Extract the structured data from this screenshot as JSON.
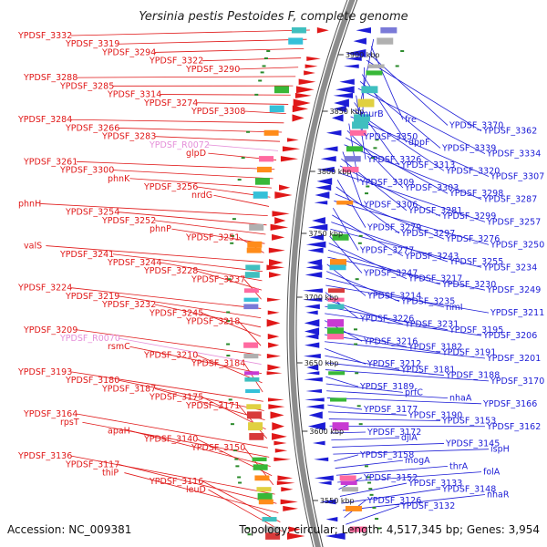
{
  "title": "Yersinia pestis Pestoides F, complete genome",
  "footer": {
    "accession": "Accession: NC_009381",
    "topology": "Topology: circular; Length: 4,517,345 bp; Genes: 3,954"
  },
  "colors": {
    "forward": "#e01818",
    "reverse": "#1c1cd6",
    "rna": "#e58fd9",
    "backbone": "#8c8c8c",
    "gc": "#2a8a2a"
  },
  "kbp_ticks": [
    "3550 kbp",
    "3600 kbp",
    "3650 kbp",
    "3700 kbp",
    "3750 kbp",
    "3800 kbp",
    "3850 kbp",
    "3900 kbp"
  ],
  "left_labels": [
    {
      "text": "YPDSF_3332",
      "type": "fwd"
    },
    {
      "text": "YPDSF_3319",
      "type": "fwd"
    },
    {
      "text": "YPDSF_3294",
      "type": "fwd"
    },
    {
      "text": "YPDSF_3322",
      "type": "fwd"
    },
    {
      "text": "YPDSF_3290",
      "type": "fwd"
    },
    {
      "text": "YPDSF_3288",
      "type": "fwd"
    },
    {
      "text": "YPDSF_3285",
      "type": "fwd"
    },
    {
      "text": "YPDSF_3314",
      "type": "fwd"
    },
    {
      "text": "YPDSF_3274",
      "type": "fwd"
    },
    {
      "text": "YPDSF_3308",
      "type": "fwd"
    },
    {
      "text": "YPDSF_3284",
      "type": "fwd"
    },
    {
      "text": "YPDSF_3266",
      "type": "fwd"
    },
    {
      "text": "YPDSF_3283",
      "type": "fwd"
    },
    {
      "text": "YPDSF_R0072",
      "type": "rna"
    },
    {
      "text": "glpD",
      "type": "fwd"
    },
    {
      "text": "YPDSF_3261",
      "type": "fwd"
    },
    {
      "text": "YPDSF_3300",
      "type": "fwd"
    },
    {
      "text": "phnK",
      "type": "fwd"
    },
    {
      "text": "YPDSF_3256",
      "type": "fwd"
    },
    {
      "text": "nrdG",
      "type": "fwd"
    },
    {
      "text": "phnH",
      "type": "fwd"
    },
    {
      "text": "YPDSF_3254",
      "type": "fwd"
    },
    {
      "text": "YPDSF_3252",
      "type": "fwd"
    },
    {
      "text": "phnP",
      "type": "fwd"
    },
    {
      "text": "YPDSF_3251",
      "type": "fwd"
    },
    {
      "text": "valS",
      "type": "fwd"
    },
    {
      "text": "YPDSF_3241",
      "type": "fwd"
    },
    {
      "text": "YPDSF_3244",
      "type": "fwd"
    },
    {
      "text": "YPDSF_3228",
      "type": "fwd"
    },
    {
      "text": "YPDSF_3237",
      "type": "fwd"
    },
    {
      "text": "YPDSF_3224",
      "type": "fwd"
    },
    {
      "text": "YPDSF_3219",
      "type": "fwd"
    },
    {
      "text": "YPDSF_3232",
      "type": "fwd"
    },
    {
      "text": "YPDSF_3245",
      "type": "fwd"
    },
    {
      "text": "YPDSF_3218",
      "type": "fwd"
    },
    {
      "text": "YPDSF_3209",
      "type": "fwd"
    },
    {
      "text": "YPDSF_R0070",
      "type": "rna"
    },
    {
      "text": "rsmC",
      "type": "fwd"
    },
    {
      "text": "YPDSF_3210",
      "type": "fwd"
    },
    {
      "text": "YPDSF_3184",
      "type": "fwd"
    },
    {
      "text": "YPDSF_3193",
      "type": "fwd"
    },
    {
      "text": "YPDSF_3180",
      "type": "fwd"
    },
    {
      "text": "YPDSF_3187",
      "type": "fwd"
    },
    {
      "text": "YPDSF_3175",
      "type": "fwd"
    },
    {
      "text": "YPDSF_3171",
      "type": "fwd"
    },
    {
      "text": "YPDSF_3164",
      "type": "fwd"
    },
    {
      "text": "rpsT",
      "type": "fwd"
    },
    {
      "text": "apaH",
      "type": "fwd"
    },
    {
      "text": "YPDSF_3140",
      "type": "fwd"
    },
    {
      "text": "YPDSF_3150",
      "type": "fwd"
    },
    {
      "text": "YPDSF_3136",
      "type": "fwd"
    },
    {
      "text": "YPDSF_3117",
      "type": "fwd"
    },
    {
      "text": "thiP",
      "type": "fwd"
    },
    {
      "text": "YPDSF_3116",
      "type": "fwd"
    },
    {
      "text": "leuD",
      "type": "fwd"
    }
  ],
  "right_labels": [
    "murB",
    "fre",
    "YPDSF_3370",
    "YPDSF_3362",
    "YPDSF_3350",
    "dppF",
    "YPDSF_3339",
    "YPDSF_3334",
    "YPDSF_3326",
    "YPDSF_3313",
    "YPDSF_3320",
    "YPDSF_3307",
    "YPDSF_3309",
    "YPDSF_3303",
    "YPDSF_3298",
    "YPDSF_3287",
    "YPDSF_3306",
    "YPDSF_3281",
    "YPDSF_3299",
    "YPDSF_3257",
    "YPDSF_3279",
    "YPDSF_3297",
    "YPDSF_3276",
    "YPDSF_3250",
    "YPDSF_3277",
    "YPDSF_3243",
    "YPDSF_3255",
    "YPDSF_3234",
    "YPDSF_3247",
    "YPDSF_3217",
    "YPDSF_3230",
    "YPDSF_3249",
    "YPDSF_3214",
    "YPDSF_3235",
    "rimI",
    "YPDSF_3211",
    "YPDSF_3226",
    "YPDSF_3231",
    "YPDSF_3195",
    "YPDSF_3206",
    "YPDSF_3216",
    "YPDSF_3182",
    "YPDSF_3191",
    "YPDSF_3201",
    "YPDSF_3212",
    "YPDSF_3181",
    "YPDSF_3188",
    "YPDSF_3170",
    "YPDSF_3189",
    "prfC",
    "nhaA",
    "YPDSF_3166",
    "YPDSF_3177",
    "YPDSF_3190",
    "YPDSF_3153",
    "YPDSF_3162",
    "YPDSF_3172",
    "djlA",
    "YPDSF_3145",
    "ispH",
    "YPDSF_3158",
    "mogA",
    "thrA",
    "folA",
    "YPDSF_3152",
    "YPDSF_3133",
    "YPDSF_3148",
    "nhaR",
    "YPDSF_3126",
    "YPDSF_3132"
  ]
}
